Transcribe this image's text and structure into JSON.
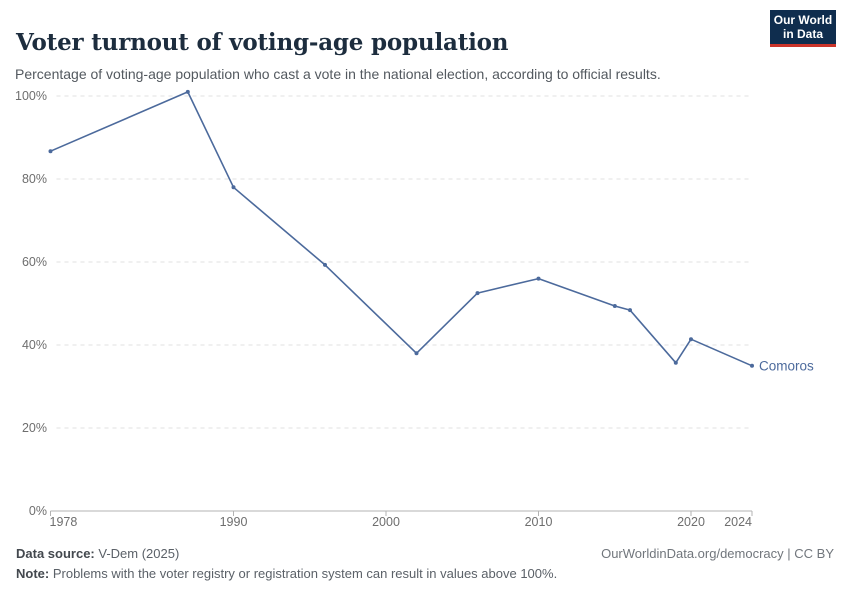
{
  "header": {
    "title": "Voter turnout of voting-age population",
    "subtitle": "Percentage of voting-age population who cast a vote in the national election, according to official results.",
    "logo": {
      "line1": "Our World",
      "line2": "in Data",
      "bg_color": "#0f2d4e",
      "stripe_color": "#cb342a"
    }
  },
  "chart_data": {
    "type": "line",
    "title": "Voter turnout of voting-age population",
    "xlabel": "",
    "ylabel": "",
    "xlim": [
      1978,
      2024
    ],
    "ylim": [
      0,
      100
    ],
    "x_ticks": [
      "1978",
      "1990",
      "2000",
      "2010",
      "2020",
      "2024"
    ],
    "x_tick_values": [
      1978,
      1990,
      2000,
      2010,
      2020,
      2024
    ],
    "y_ticks": [
      "0%",
      "20%",
      "40%",
      "60%",
      "80%",
      "100%"
    ],
    "y_tick_values": [
      0,
      20,
      40,
      60,
      80,
      100
    ],
    "grid": "horizontal dashed",
    "legend_position": "end-of-line label",
    "series": [
      {
        "name": "Comoros",
        "color": "#4c6a9c",
        "points": [
          {
            "x": 1978,
            "y": 86.7
          },
          {
            "x": 1987,
            "y": 101.0
          },
          {
            "x": 1990,
            "y": 78.0
          },
          {
            "x": 1996,
            "y": 59.3
          },
          {
            "x": 2002,
            "y": 38.0
          },
          {
            "x": 2006,
            "y": 52.5
          },
          {
            "x": 2010,
            "y": 56.0
          },
          {
            "x": 2015,
            "y": 49.4
          },
          {
            "x": 2016,
            "y": 48.4
          },
          {
            "x": 2019,
            "y": 35.7
          },
          {
            "x": 2020,
            "y": 41.4
          },
          {
            "x": 2024,
            "y": 35.0
          }
        ]
      }
    ],
    "colors": {
      "grid": "#e0e0e0",
      "axis": "#b3b3b3",
      "tick_text": "#6e6e6e"
    }
  },
  "footer": {
    "data_source_label": "Data source:",
    "data_source_value": "V-Dem (2025)",
    "note_label": "Note:",
    "note_text": "Problems with the voter registry or registration system can result in values above 100%.",
    "link": "OurWorldinData.org/democracy",
    "license": "| CC BY"
  }
}
